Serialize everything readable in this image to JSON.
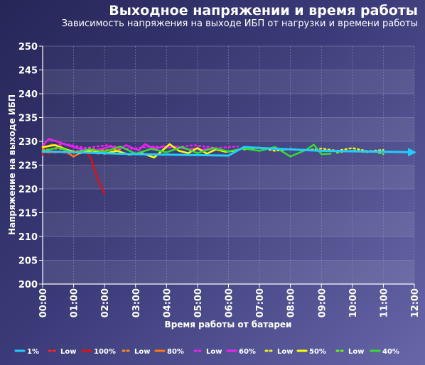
{
  "title": "Выходное напряжении и время работы",
  "subtitle": "Зависимость напряжения на выходе ИБП от нагрузки и времени работы",
  "chart_data": {
    "type": "line",
    "xlabel": "Время работы от батареи",
    "ylabel": "Напряжение на выходе ИБП",
    "xlim": [
      0,
      12
    ],
    "ylim": [
      200,
      250
    ],
    "x_ticks": [
      "00:00",
      "01:00",
      "02:00",
      "03:00",
      "04:00",
      "05:00",
      "06:00",
      "07:00",
      "08:00",
      "09:00",
      "10:00",
      "11:00",
      "12:00"
    ],
    "y_ticks": [
      "200",
      "205",
      "210",
      "215",
      "220",
      "225",
      "230",
      "235",
      "240",
      "245",
      "250"
    ],
    "grid": true,
    "legend_position": "bottom",
    "series": [
      {
        "name": "1%",
        "color": "#22ccff",
        "style": "solid",
        "x": [
          0,
          0.5,
          1,
          2,
          3,
          4,
          5,
          6,
          6.5,
          7,
          8,
          9,
          10,
          11,
          12
        ],
        "y": [
          227.8,
          227.8,
          227.7,
          227.5,
          227.3,
          227.2,
          227.1,
          227.0,
          228.8,
          228.6,
          228.3,
          228.0,
          227.9,
          227.8,
          227.7
        ]
      },
      {
        "name": "Low",
        "color": "#ff2222",
        "style": "dotted",
        "x": [
          0,
          0.2,
          0.4,
          0.6,
          0.8,
          1.0,
          1.2,
          1.4,
          1.6
        ],
        "y": [
          227.6,
          227.9,
          227.5,
          227.8,
          227.4,
          227.7,
          227.5,
          227.6,
          227.4
        ]
      },
      {
        "name": "100%",
        "color": "#dd1111",
        "style": "solid",
        "x": [
          0,
          0.1,
          0.2,
          0.3,
          0.4,
          0.6,
          0.8,
          1.0,
          1.2,
          1.4,
          1.55,
          1.7,
          1.85,
          2.0
        ],
        "y": [
          227.2,
          228.0,
          227.4,
          228.3,
          227.6,
          227.9,
          227.5,
          228.0,
          227.6,
          227.9,
          226.5,
          223.5,
          221.0,
          219.0
        ]
      },
      {
        "name": "Low",
        "color": "#ff8822",
        "style": "dotted",
        "x": [
          0,
          0.5,
          1.0,
          1.5,
          2.0,
          2.5
        ],
        "y": [
          228.2,
          228.5,
          227.8,
          228.4,
          228.1,
          228.3
        ]
      },
      {
        "name": "80%",
        "color": "#ff7711",
        "style": "solid",
        "x": [
          0,
          0.3,
          0.6,
          0.9,
          1.0,
          1.2,
          1.5,
          1.8,
          2.1
        ],
        "y": [
          228.6,
          229.3,
          228.8,
          227.2,
          226.8,
          227.5,
          228.0,
          227.4,
          228.2
        ]
      },
      {
        "name": "Low",
        "color": "#ee22ee",
        "style": "dotted",
        "x": [
          0,
          0.7,
          1.4,
          2.1,
          2.8,
          3.5,
          4.2,
          4.9,
          5.6,
          6.3
        ],
        "y": [
          228.8,
          229.5,
          228.6,
          229.2,
          228.4,
          228.9,
          228.7,
          229.2,
          228.6,
          228.9
        ]
      },
      {
        "name": "60%",
        "color": "#ee22ee",
        "style": "solid",
        "x": [
          0,
          0.1,
          0.2,
          0.35,
          0.5,
          0.7,
          0.9,
          1.1,
          1.3,
          1.6,
          1.9,
          2.2,
          2.5,
          2.7,
          2.9,
          3.1,
          3.3,
          3.5,
          3.7,
          3.9,
          4.1,
          4.3,
          4.5,
          4.7,
          4.9,
          5.1,
          5.3,
          5.5
        ],
        "y": [
          229.0,
          229.8,
          230.5,
          230.2,
          229.9,
          229.4,
          229.0,
          228.6,
          228.3,
          228.0,
          228.4,
          228.9,
          228.5,
          229.2,
          228.6,
          228.1,
          229.4,
          228.8,
          228.5,
          229.0,
          228.7,
          228.9,
          228.6,
          228.3,
          228.5,
          228.2,
          228.4,
          228.3
        ]
      },
      {
        "name": "Low",
        "color": "#eeee22",
        "style": "dotted",
        "x": [
          6.5,
          7.0,
          7.5,
          8.0,
          8.5,
          9.0,
          9.5,
          10.0,
          10.5,
          11.0
        ],
        "y": [
          228.3,
          228.7,
          228.0,
          228.4,
          228.1,
          228.5,
          228.0,
          228.6,
          227.9,
          228.2
        ]
      },
      {
        "name": "50%",
        "color": "#ffff00",
        "style": "solid",
        "x": [
          0,
          0.4,
          0.8,
          1.2,
          1.6,
          2.0,
          2.4,
          2.8,
          3.2,
          3.6,
          3.9,
          4.1,
          4.4,
          4.7,
          5.0,
          5.3,
          5.6,
          5.9,
          6.2
        ],
        "y": [
          228.8,
          229.2,
          228.2,
          227.5,
          228.1,
          227.4,
          228.0,
          227.2,
          227.5,
          226.6,
          228.3,
          229.4,
          228.0,
          227.5,
          228.6,
          227.4,
          228.3,
          227.8,
          228.0
        ]
      },
      {
        "name": "Low",
        "color": "#66ee22",
        "style": "dotted",
        "x": [
          9.5,
          9.8,
          10.1,
          10.4,
          10.7,
          11.0
        ],
        "y": [
          227.6,
          227.9,
          228.1,
          227.7,
          227.9,
          227.3
        ]
      },
      {
        "name": "40%",
        "color": "#33dd33",
        "style": "solid",
        "x": [
          0,
          0.5,
          1.0,
          1.5,
          2.0,
          2.5,
          3.0,
          3.5,
          4.0,
          4.5,
          5.0,
          5.5,
          6.0,
          6.5,
          7.0,
          7.5,
          8.0,
          8.5,
          8.75,
          9.0,
          9.3
        ],
        "y": [
          227.9,
          228.7,
          227.6,
          228.3,
          227.8,
          228.9,
          227.4,
          228.4,
          227.7,
          228.8,
          227.5,
          228.6,
          227.9,
          228.5,
          228.0,
          228.8,
          226.8,
          228.2,
          229.3,
          227.3,
          227.4
        ]
      }
    ]
  }
}
